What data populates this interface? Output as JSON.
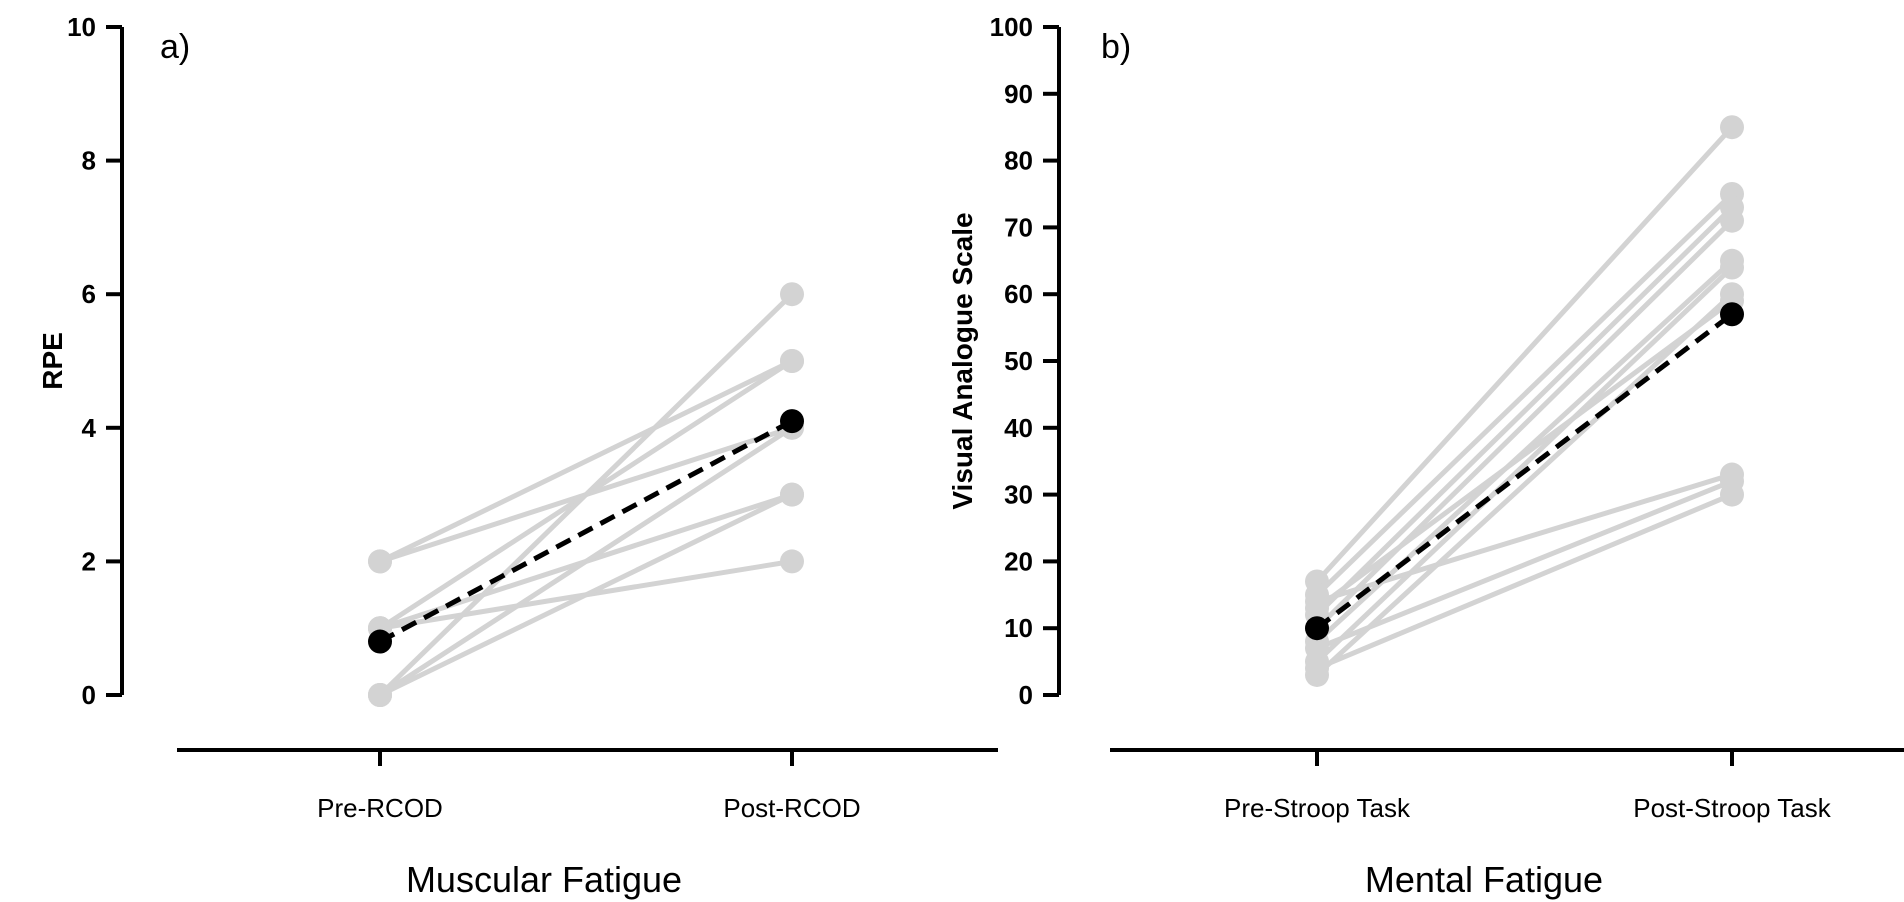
{
  "chart_data": [
    {
      "type": "line",
      "panel_label": "a)",
      "title": "",
      "ylabel": "RPE",
      "xlabel": "Muscular Fatigue",
      "categories": [
        "Pre-RCOD",
        "Post-RCOD"
      ],
      "ylim": [
        0,
        10
      ],
      "yticks": [
        "0",
        "2",
        "4",
        "6",
        "8",
        "10"
      ],
      "grid": false,
      "individual_color": "#d3d3d3",
      "mean_color": "#000000",
      "individuals": [
        [
          2,
          4
        ],
        [
          2,
          5
        ],
        [
          1,
          5
        ],
        [
          0,
          6
        ],
        [
          1,
          2
        ],
        [
          0,
          3
        ],
        [
          1,
          3
        ],
        [
          0,
          4
        ]
      ],
      "mean": [
        0.8,
        4.1
      ]
    },
    {
      "type": "line",
      "panel_label": "b)",
      "title": "",
      "ylabel": "Visual Analogue Scale",
      "xlabel": "Mental Fatigue",
      "categories": [
        "Pre-Stroop Task",
        "Post-Stroop Task"
      ],
      "ylim": [
        0,
        100
      ],
      "yticks": [
        "0",
        "10",
        "20",
        "30",
        "40",
        "50",
        "60",
        "70",
        "80",
        "90",
        "100"
      ],
      "grid": false,
      "individual_color": "#d3d3d3",
      "mean_color": "#000000",
      "individuals": [
        [
          17,
          85
        ],
        [
          15,
          75
        ],
        [
          12,
          73
        ],
        [
          10,
          71
        ],
        [
          8,
          65
        ],
        [
          5,
          64
        ],
        [
          3,
          60
        ],
        [
          13,
          59
        ],
        [
          14,
          33
        ],
        [
          7,
          32
        ],
        [
          4,
          30
        ]
      ],
      "mean": [
        10,
        57
      ]
    }
  ]
}
